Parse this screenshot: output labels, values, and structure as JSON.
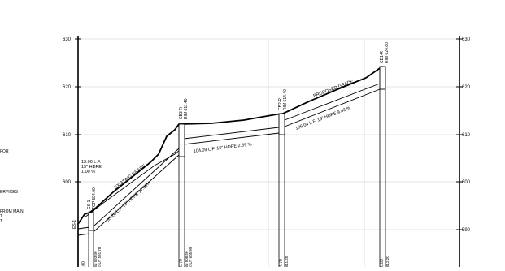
{
  "elevations": {
    "labels": [
      "630",
      "620",
      "610",
      "600",
      "590"
    ]
  },
  "notes": [
    "FOR",
    "ERVICES",
    "FROM MAIN",
    "T.",
    "T."
  ],
  "profile_labels": {
    "existing_grade": "EXISTING GRADE",
    "proposed_grade": "PROPOSED GRADE"
  },
  "pipes": [
    {
      "label": "13.00 L.F.",
      "label2": "15\" HDPE",
      "label3": "1.00 %"
    },
    {
      "label": "95.20 L.F. 15\" HDPE 17.60%"
    },
    {
      "label": "104.09 L.F. 15\" HDPE 2.59 %"
    },
    {
      "label": "106.04 L.F. 15\" HDPE 9.43 %"
    }
  ],
  "structures": [
    {
      "name": "ES-1",
      "rim": ""
    },
    {
      "name": "CS-1",
      "rim": "TOP 594.00"
    },
    {
      "name": "CB3-R",
      "rim": "RIM 611.40"
    },
    {
      "name": "CB2-R",
      "rim": "RIM 614.40"
    },
    {
      "name": "CB1-R",
      "rim": "RIM 624.80"
    }
  ],
  "inverts": [
    {
      "text": "IN 593.00"
    },
    {
      "text": "OUT 591.78"
    },
    {
      "text": "IN 608.50"
    },
    {
      "text": "OUT 605.99"
    },
    {
      "text": "611.20"
    },
    {
      "text": "612.20"
    }
  ],
  "station_fragments": [
    ".00",
    "0.70",
    "4.79",
    "0.83"
  ]
}
